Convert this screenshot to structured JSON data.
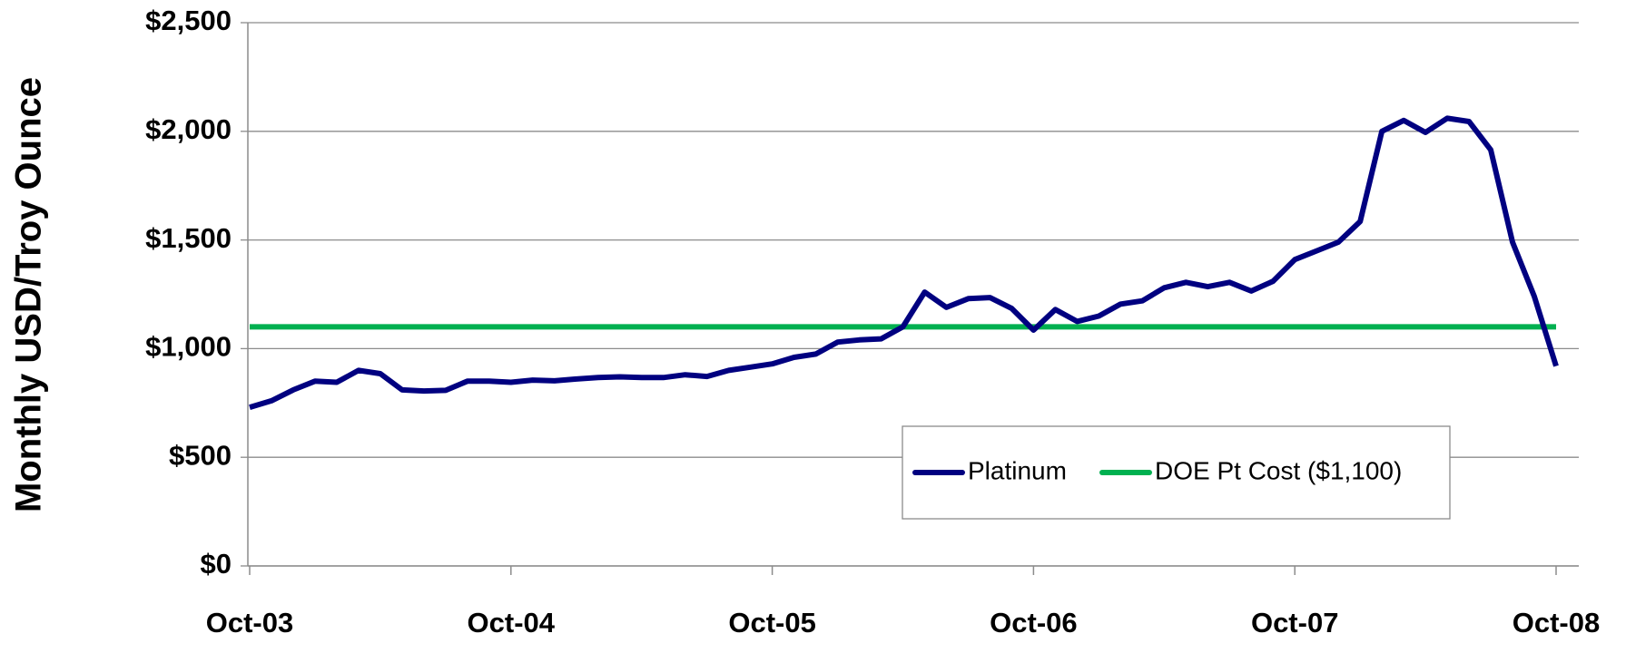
{
  "chart_data": {
    "type": "line",
    "y_label": "Monthly USD/Troy Ounce",
    "categories": [
      "Oct-03",
      null,
      null,
      null,
      null,
      null,
      null,
      null,
      null,
      null,
      null,
      null,
      "Oct-04",
      null,
      null,
      null,
      null,
      null,
      null,
      null,
      null,
      null,
      null,
      null,
      "Oct-05",
      null,
      null,
      null,
      null,
      null,
      null,
      null,
      null,
      null,
      null,
      null,
      "Oct-06",
      null,
      null,
      null,
      null,
      null,
      null,
      null,
      null,
      null,
      null,
      null,
      "Oct-07",
      null,
      null,
      null,
      null,
      null,
      null,
      null,
      null,
      null,
      null,
      null,
      "Oct-08"
    ],
    "series": [
      {
        "name": "Platinum",
        "color": "#000080",
        "values": [
          730,
          760,
          810,
          850,
          845,
          900,
          885,
          810,
          805,
          808,
          850,
          850,
          845,
          855,
          852,
          860,
          867,
          870,
          867,
          867,
          880,
          872,
          900,
          915,
          930,
          960,
          975,
          1030,
          1040,
          1045,
          1100,
          1260,
          1190,
          1230,
          1235,
          1185,
          1085,
          1180,
          1125,
          1150,
          1205,
          1220,
          1280,
          1305,
          1285,
          1305,
          1265,
          1310,
          1410,
          1450,
          1490,
          1585,
          2000,
          2050,
          1995,
          2060,
          2045,
          1915,
          1490,
          1240,
          920
        ]
      },
      {
        "name": "DOE Pt Cost ($1,100)",
        "color": "#00b050",
        "values": [
          1100,
          1100,
          1100,
          1100,
          1100,
          1100,
          1100,
          1100,
          1100,
          1100,
          1100,
          1100,
          1100,
          1100,
          1100,
          1100,
          1100,
          1100,
          1100,
          1100,
          1100,
          1100,
          1100,
          1100,
          1100,
          1100,
          1100,
          1100,
          1100,
          1100,
          1100,
          1100,
          1100,
          1100,
          1100,
          1100,
          1100,
          1100,
          1100,
          1100,
          1100,
          1100,
          1100,
          1100,
          1100,
          1100,
          1100,
          1100,
          1100,
          1100,
          1100,
          1100,
          1100,
          1100,
          1100,
          1100,
          1100,
          1100,
          1100,
          1100,
          1100
        ]
      }
    ],
    "ylim": [
      0,
      2500
    ],
    "yticks": [
      {
        "value": 0,
        "label": "$0"
      },
      {
        "value": 500,
        "label": "$500"
      },
      {
        "value": 1000,
        "label": "$1,000"
      },
      {
        "value": 1500,
        "label": "$1,500"
      },
      {
        "value": 2000,
        "label": "$2,000"
      },
      {
        "value": 2500,
        "label": "$2,500"
      }
    ],
    "grid": true,
    "legend": "lower right"
  }
}
